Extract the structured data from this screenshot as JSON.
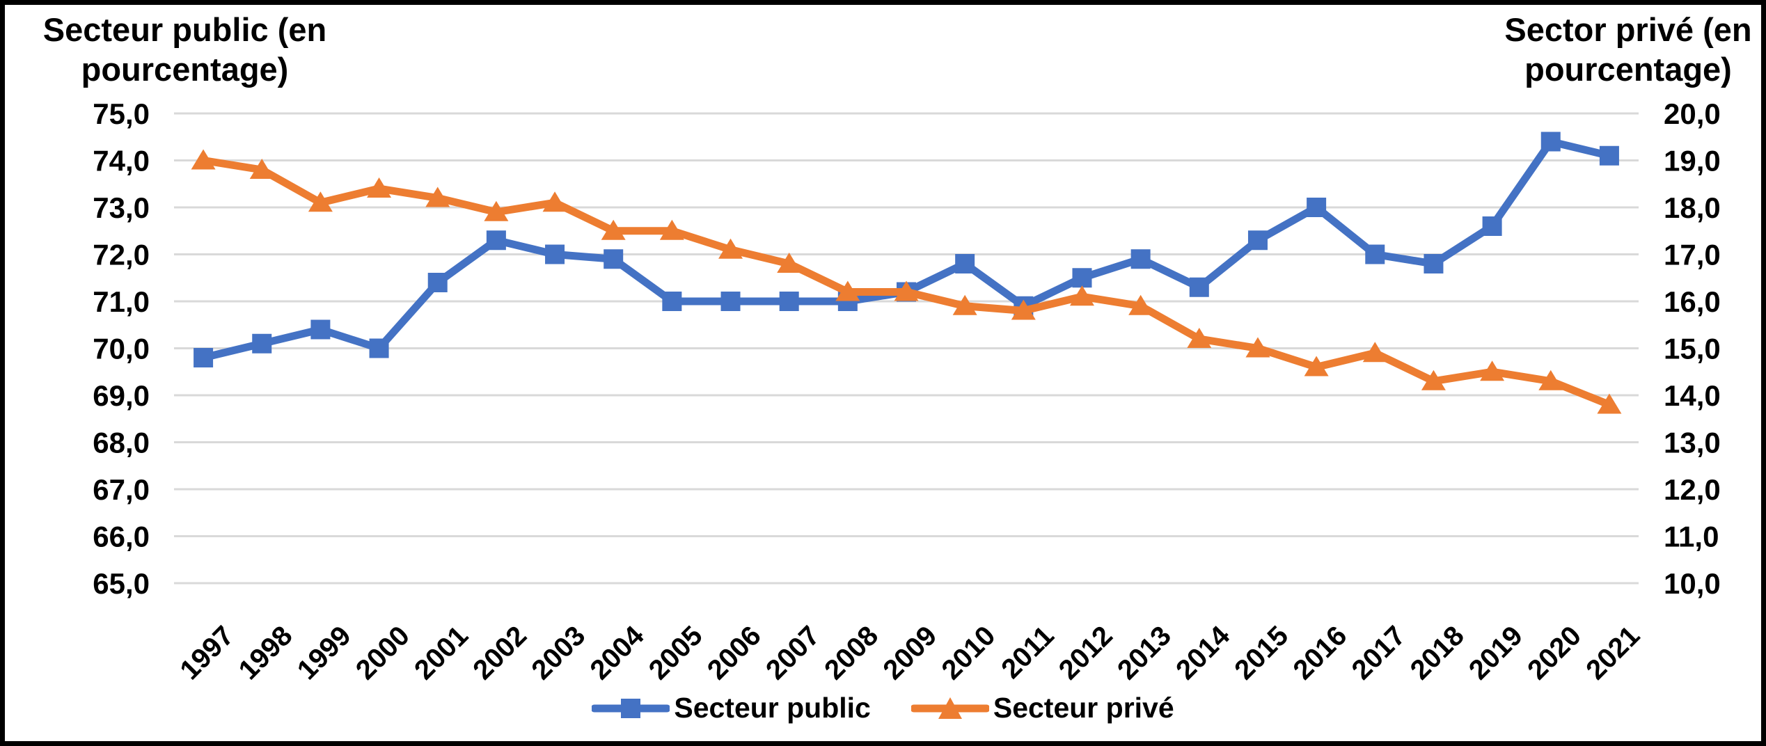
{
  "axis_left": {
    "title_line1": "Secteur public (en",
    "title_line2": "pourcentage)",
    "ticks": [
      "75,0",
      "74,0",
      "73,0",
      "72,0",
      "71,0",
      "70,0",
      "69,0",
      "68,0",
      "67,0",
      "66,0",
      "65,0"
    ]
  },
  "axis_right": {
    "title_line1": "Sector privé (en",
    "title_line2": "pourcentage)",
    "ticks": [
      "20,0",
      "19,0",
      "18,0",
      "17,0",
      "16,0",
      "15,0",
      "14,0",
      "13,0",
      "12,0",
      "11,0",
      "10,0"
    ]
  },
  "legend": {
    "public_label": "Secteur public",
    "prive_label": "Secteur privé"
  },
  "colors": {
    "public_series": "#4472C4",
    "prive_series": "#ED7D31",
    "gridline": "#D9D9D9",
    "background": "#FFFFFF",
    "border": "#000000"
  },
  "chart_data": {
    "type": "line",
    "categories": [
      "1997",
      "1998",
      "1999",
      "2000",
      "2001",
      "2002",
      "2003",
      "2004",
      "2005",
      "2006",
      "2007",
      "2008",
      "2009",
      "2010",
      "2011",
      "2012",
      "2013",
      "2014",
      "2015",
      "2016",
      "2017",
      "2018",
      "2019",
      "2020",
      "2021"
    ],
    "series": [
      {
        "name": "Secteur public",
        "axis": "left",
        "color": "#4472C4",
        "marker": "square",
        "values": [
          69.8,
          70.1,
          70.4,
          70.0,
          71.4,
          72.3,
          72.0,
          71.9,
          71.0,
          71.0,
          71.0,
          71.0,
          71.2,
          71.8,
          70.9,
          71.5,
          71.9,
          71.3,
          72.3,
          73.0,
          72.0,
          71.8,
          72.6,
          74.4,
          74.1
        ]
      },
      {
        "name": "Secteur privé",
        "axis": "right",
        "color": "#ED7D31",
        "marker": "triangle",
        "values": [
          19.0,
          18.8,
          18.1,
          18.4,
          18.2,
          17.9,
          18.1,
          17.5,
          17.5,
          17.1,
          16.8,
          16.2,
          16.2,
          15.9,
          15.8,
          16.1,
          15.9,
          15.2,
          15.0,
          14.6,
          14.9,
          14.3,
          14.5,
          14.3,
          13.8
        ]
      }
    ],
    "left_axis": {
      "label": "Secteur public (en pourcentage)",
      "min": 65.0,
      "max": 75.0,
      "step": 1.0
    },
    "right_axis": {
      "label": "Sector privé (en pourcentage)",
      "min": 10.0,
      "max": 20.0,
      "step": 1.0
    },
    "grid": "horizontal",
    "legend_position": "bottom"
  }
}
